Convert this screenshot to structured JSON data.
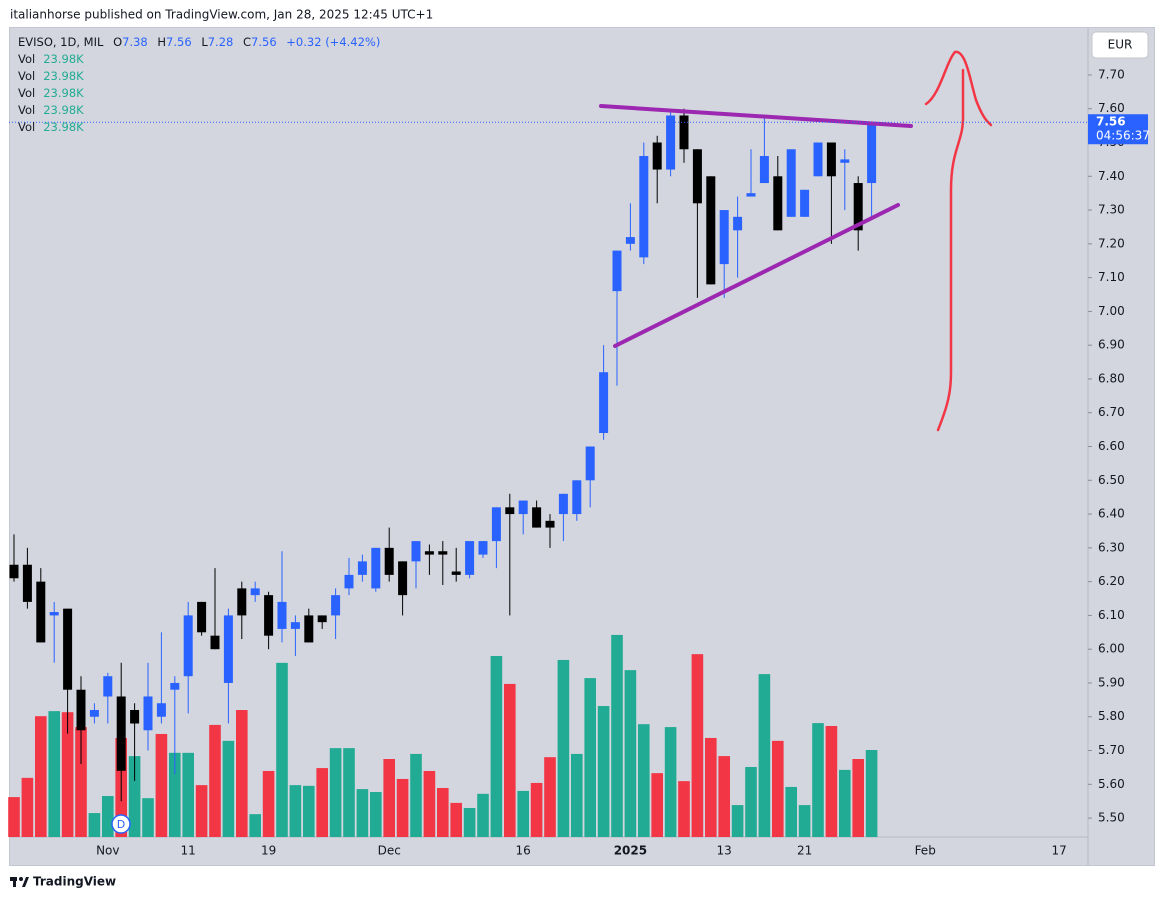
{
  "header": {
    "publisher": "italianhorse published on TradingView.com, Jan 28, 2025 12:45 UTC+1"
  },
  "footer": {
    "brand": "TradingView"
  },
  "chart_data": {
    "type": "candlestick",
    "title": "EVISO, 1D, MIL",
    "currency": "EUR",
    "countdown": "04:56:37",
    "change_label": "+0.32 (+4.42%)",
    "ohlc_letters": [
      "O",
      "H",
      "L",
      "C"
    ],
    "event_marker": "D",
    "categories": [
      null,
      null,
      null,
      null,
      null,
      null,
      null,
      "Nov",
      null,
      null,
      null,
      null,
      null,
      "11",
      null,
      null,
      null,
      null,
      null,
      "19",
      null,
      null,
      null,
      null,
      null,
      null,
      null,
      null,
      "Dec",
      null,
      null,
      null,
      null,
      null,
      null,
      null,
      null,
      null,
      "16",
      null,
      null,
      null,
      null,
      null,
      null,
      null,
      "2025",
      null,
      null,
      null,
      null,
      null,
      null,
      "13",
      null,
      null,
      null,
      null,
      null,
      "21",
      null,
      null,
      null,
      null,
      null,
      null,
      null,
      null,
      "Feb",
      null,
      null,
      null,
      null,
      null,
      null,
      null,
      null,
      null,
      "17",
      null,
      null
    ],
    "series": {
      "open": [
        6.25,
        6.25,
        6.2,
        6.1,
        6.12,
        5.88,
        5.8,
        5.86,
        5.86,
        5.82,
        5.76,
        5.8,
        5.88,
        5.92,
        6.14,
        6.04,
        5.9,
        6.18,
        6.16,
        6.16,
        6.06,
        6.06,
        6.1,
        6.1,
        6.1,
        6.18,
        6.22,
        6.18,
        6.3,
        6.26,
        6.26,
        6.29,
        6.29,
        6.23,
        6.22,
        6.28,
        6.32,
        6.42,
        6.4,
        6.42,
        6.38,
        6.4,
        6.4,
        6.5,
        6.64,
        7.06,
        7.2,
        7.16,
        7.5,
        7.42,
        7.58,
        7.48,
        7.4,
        7.14,
        7.24,
        7.34,
        7.38,
        7.4,
        7.28,
        7.28,
        7.4,
        7.5,
        7.44,
        7.38,
        7.38,
        null,
        null,
        null,
        null,
        null,
        null,
        null,
        null,
        null,
        null,
        null,
        null,
        null,
        null,
        null,
        null
      ],
      "high": [
        6.34,
        6.3,
        6.24,
        6.14,
        6.12,
        5.92,
        5.84,
        5.93,
        5.96,
        5.84,
        5.96,
        6.05,
        5.92,
        6.14,
        6.14,
        6.24,
        6.12,
        6.2,
        6.2,
        6.17,
        6.29,
        6.1,
        6.12,
        6.1,
        6.18,
        6.27,
        6.28,
        6.3,
        6.36,
        6.26,
        6.32,
        6.31,
        6.32,
        6.3,
        6.32,
        6.32,
        6.42,
        6.46,
        6.44,
        6.44,
        6.4,
        6.46,
        6.5,
        6.6,
        6.9,
        7.18,
        7.32,
        7.5,
        7.52,
        7.6,
        7.6,
        7.48,
        7.4,
        7.3,
        7.34,
        7.48,
        7.58,
        7.46,
        7.48,
        7.36,
        7.5,
        7.5,
        7.48,
        7.4,
        7.56,
        null,
        null,
        null,
        null,
        null,
        null,
        null,
        null,
        null,
        null,
        null,
        null,
        null,
        null,
        null,
        null
      ],
      "low": [
        6.2,
        6.12,
        6.02,
        5.96,
        5.75,
        5.66,
        5.78,
        5.78,
        5.55,
        5.61,
        5.7,
        5.78,
        5.63,
        5.81,
        6.04,
        6.0,
        5.78,
        6.03,
        6.14,
        6.0,
        6.02,
        5.98,
        6.02,
        6.06,
        6.03,
        6.16,
        6.2,
        6.17,
        6.2,
        6.1,
        6.18,
        6.22,
        6.19,
        6.2,
        6.21,
        6.27,
        6.24,
        6.1,
        6.34,
        6.36,
        6.3,
        6.32,
        6.38,
        6.42,
        6.62,
        6.78,
        7.18,
        7.14,
        7.32,
        7.4,
        7.44,
        7.04,
        7.08,
        7.04,
        7.1,
        7.34,
        7.38,
        7.24,
        7.28,
        7.28,
        7.4,
        7.2,
        7.3,
        7.18,
        7.28,
        null,
        null,
        null,
        null,
        null,
        null,
        null,
        null,
        null,
        null,
        null,
        null,
        null,
        null,
        null,
        null
      ],
      "close": [
        6.21,
        6.14,
        6.02,
        6.11,
        5.88,
        5.76,
        5.82,
        5.92,
        5.64,
        5.78,
        5.86,
        5.84,
        5.9,
        6.1,
        6.05,
        6.0,
        6.1,
        6.1,
        6.18,
        6.04,
        6.14,
        6.08,
        6.02,
        6.08,
        6.16,
        6.22,
        6.26,
        6.3,
        6.22,
        6.16,
        6.32,
        6.28,
        6.28,
        6.22,
        6.32,
        6.32,
        6.42,
        6.4,
        6.44,
        6.36,
        6.36,
        6.46,
        6.5,
        6.6,
        6.82,
        7.18,
        7.22,
        7.46,
        7.42,
        7.58,
        7.48,
        7.32,
        7.08,
        7.3,
        7.28,
        7.35,
        7.46,
        7.24,
        7.48,
        7.36,
        7.5,
        7.4,
        7.45,
        7.24,
        7.56,
        null,
        null,
        null,
        null,
        null,
        null,
        null,
        null,
        null,
        null,
        null,
        null,
        null,
        null,
        null,
        null
      ]
    },
    "up_color": "#2962ff",
    "down_color": "#000000",
    "volume": {
      "name": "Vol",
      "value_label": "23.98K",
      "values": [
        11.0,
        16.3,
        33.3,
        34.7,
        34.4,
        30.3,
        6.6,
        11.3,
        27.3,
        22.3,
        10.7,
        28.4,
        23.2,
        23.2,
        14.3,
        30.9,
        26.5,
        35.0,
        6.3,
        18.2,
        48.0,
        14.3,
        14.1,
        19.0,
        24.5,
        24.5,
        13.2,
        12.4,
        21.5,
        16.0,
        22.9,
        18.2,
        13.5,
        9.4,
        8.0,
        11.9,
        49.9,
        42.2,
        12.7,
        14.9,
        22.0,
        48.8,
        22.9,
        43.8,
        36.1,
        55.7,
        46.0,
        31.1,
        17.6,
        30.3,
        15.4,
        50.4,
        27.3,
        22.3,
        8.8,
        19.3,
        44.9,
        26.5,
        13.8,
        8.8,
        31.4,
        30.6,
        18.5,
        21.5,
        23.98,
        null,
        null,
        null,
        null,
        null,
        null,
        null,
        null,
        null,
        null,
        null,
        null,
        null,
        null,
        null,
        null
      ],
      "colors": [
        "#f23645",
        "#f23645",
        "#f23645",
        "#22ab94",
        "#f23645",
        "#f23645",
        "#22ab94",
        "#22ab94",
        "#f23645",
        "#22ab94",
        "#22ab94",
        "#f23645",
        "#22ab94",
        "#22ab94",
        "#f23645",
        "#f23645",
        "#22ab94",
        "#f23645",
        "#22ab94",
        "#f23645",
        "#22ab94",
        "#22ab94",
        "#22ab94",
        "#f23645",
        "#22ab94",
        "#22ab94",
        "#22ab94",
        "#22ab94",
        "#f23645",
        "#f23645",
        "#22ab94",
        "#f23645",
        "#f23645",
        "#f23645",
        "#22ab94",
        "#22ab94",
        "#22ab94",
        "#f23645",
        "#22ab94",
        "#f23645",
        "#f23645",
        "#22ab94",
        "#22ab94",
        "#22ab94",
        "#22ab94",
        "#22ab94",
        "#22ab94",
        "#22ab94",
        "#f23645",
        "#22ab94",
        "#f23645",
        "#f23645",
        "#f23645",
        "#f23645",
        "#22ab94",
        "#22ab94",
        "#22ab94",
        "#f23645",
        "#22ab94",
        "#22ab94",
        "#22ab94",
        "#f23645",
        "#22ab94",
        "#f23645",
        "#22ab94",
        null,
        null,
        null,
        null,
        null,
        null,
        null,
        null,
        null,
        null,
        null,
        null,
        null,
        null,
        null,
        null
      ]
    },
    "vlim": [
      0,
      223
    ],
    "ylim": [
      5.444,
      7.839
    ],
    "yticks": [
      {
        "value": 5.5,
        "label": "5.50"
      },
      {
        "value": 5.6,
        "label": "5.60"
      },
      {
        "value": 5.7,
        "label": "5.70"
      },
      {
        "value": 5.8,
        "label": "5.80"
      },
      {
        "value": 5.9,
        "label": "5.90"
      },
      {
        "value": 6.0,
        "label": "6.00"
      },
      {
        "value": 6.1,
        "label": "6.10"
      },
      {
        "value": 6.2,
        "label": "6.20"
      },
      {
        "value": 6.3,
        "label": "6.30"
      },
      {
        "value": 6.4,
        "label": "6.40"
      },
      {
        "value": 6.5,
        "label": "6.50"
      },
      {
        "value": 6.6,
        "label": "6.60"
      },
      {
        "value": 6.7,
        "label": "6.70"
      },
      {
        "value": 6.8,
        "label": "6.80"
      },
      {
        "value": 6.9,
        "label": "6.90"
      },
      {
        "value": 7.0,
        "label": "7.00"
      },
      {
        "value": 7.1,
        "label": "7.10"
      },
      {
        "value": 7.2,
        "label": "7.20"
      },
      {
        "value": 7.3,
        "label": "7.30"
      },
      {
        "value": 7.4,
        "label": "7.40"
      },
      {
        "value": 7.5,
        "label": "7.50"
      },
      {
        "value": 7.6,
        "label": "7.60"
      },
      {
        "value": 7.7,
        "label": "7.70"
      }
    ]
  }
}
